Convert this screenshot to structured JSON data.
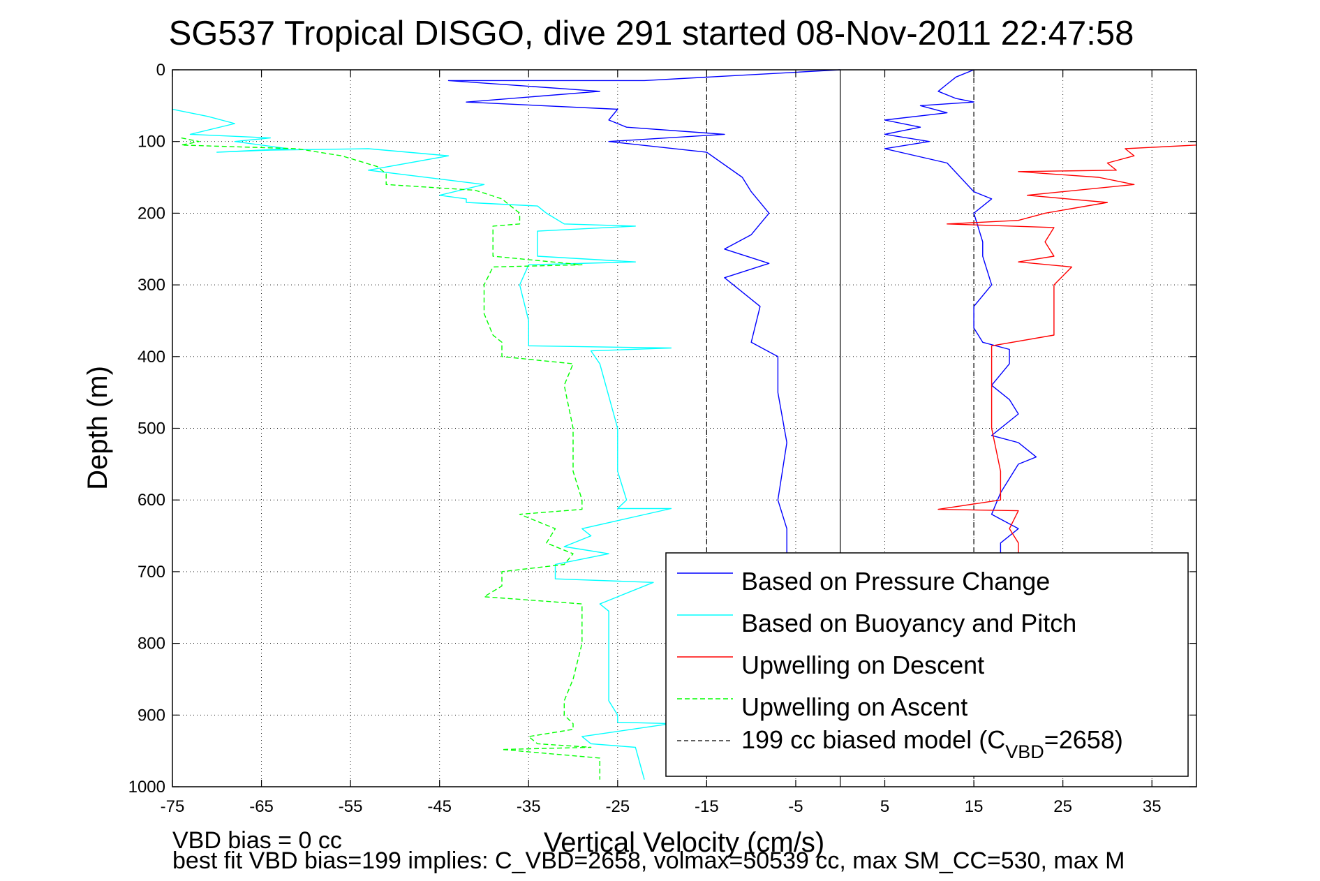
{
  "chart_data": {
    "type": "line",
    "title": "SG537 Tropical DISGO, dive 291 started 08-Nov-2011 22:47:58",
    "xlabel": "Vertical Velocity (cm/s)",
    "ylabel": "Depth (m)",
    "xlim": [
      -75,
      40
    ],
    "ylim": [
      1000,
      0
    ],
    "y_reversed": true,
    "grid": true,
    "legend_position": "bottom-right",
    "x_ticks": [
      "-75",
      "-65",
      "-55",
      "-45",
      "-35",
      "-25",
      "-15",
      "-5",
      "5",
      "15",
      "25",
      "35"
    ],
    "y_ticks": [
      "0",
      "100",
      "200",
      "300",
      "400",
      "500",
      "600",
      "700",
      "800",
      "900",
      "1000"
    ],
    "reference_lines": [
      {
        "name": "zero",
        "x": 0,
        "style": "solid",
        "color": "#000000"
      },
      {
        "name": "199 cc biased model (C_VBD=2658)",
        "x": -15,
        "style": "dashed",
        "color": "#000000"
      },
      {
        "name": "199 cc biased model (C_VBD=2658)",
        "x": 15,
        "style": "dashed",
        "color": "#000000"
      }
    ],
    "series": [
      {
        "name": "Based on Pressure Change (descent)",
        "color": "#0000ff",
        "dash": "solid",
        "x": [
          0,
          -22,
          -44,
          -27,
          -42,
          -25,
          -26,
          -24,
          -13,
          -26,
          -15,
          -11,
          -10,
          -8,
          -10,
          -13,
          -8,
          -13,
          -9,
          -10,
          -7,
          -7,
          -6,
          -7,
          -6,
          -6
        ],
        "y": [
          0,
          15,
          15,
          30,
          45,
          55,
          70,
          80,
          90,
          100,
          115,
          150,
          170,
          200,
          230,
          250,
          270,
          290,
          330,
          380,
          400,
          450,
          520,
          600,
          640,
          680
        ]
      },
      {
        "name": "Based on Pressure Change (ascent)",
        "color": "#0000ff",
        "dash": "solid",
        "x": [
          15,
          13,
          12,
          11,
          13,
          15,
          9,
          12,
          5,
          9,
          5,
          10,
          5,
          12,
          15,
          17,
          15,
          16,
          16,
          17,
          15,
          15,
          16,
          19,
          19,
          17,
          19,
          20,
          17,
          20,
          22,
          20,
          18,
          17,
          20,
          18,
          18
        ],
        "y": [
          0,
          10,
          20,
          30,
          40,
          45,
          50,
          60,
          70,
          80,
          90,
          100,
          110,
          130,
          170,
          180,
          200,
          240,
          260,
          300,
          330,
          360,
          380,
          390,
          410,
          440,
          460,
          480,
          510,
          520,
          540,
          550,
          590,
          620,
          640,
          660,
          680
        ]
      },
      {
        "name": "Based on Buoyancy and Pitch",
        "color": "#00ffff",
        "dash": "solid",
        "x": [
          -75,
          -71,
          -68,
          -73,
          -64,
          -68,
          -62,
          -70,
          -64,
          -53,
          -44,
          -53,
          -40,
          -45,
          -42,
          -42,
          -34,
          -33,
          -31,
          -23,
          -34,
          -34,
          -23,
          -35,
          -36,
          -35,
          -35,
          -19,
          -28,
          -27,
          -25,
          -25,
          -24,
          -25,
          -19,
          -29,
          -28,
          -31,
          -26,
          -32,
          -32,
          -21,
          -27,
          -26,
          -26,
          -26,
          -26,
          -25,
          -25,
          -19,
          -29,
          -28,
          -23,
          -22
        ],
        "y": [
          55,
          65,
          75,
          90,
          95,
          100,
          110,
          115,
          112,
          110,
          120,
          140,
          160,
          175,
          180,
          185,
          190,
          200,
          215,
          218,
          225,
          260,
          268,
          272,
          300,
          350,
          385,
          388,
          392,
          410,
          500,
          560,
          600,
          612,
          612,
          640,
          650,
          665,
          675,
          690,
          710,
          715,
          745,
          755,
          800,
          850,
          880,
          900,
          910,
          912,
          930,
          940,
          945,
          990
        ]
      },
      {
        "name": "Upwelling on Descent",
        "color": "#ff0000",
        "dash": "solid",
        "x": [
          40,
          32,
          33,
          30,
          31,
          20,
          29,
          33,
          21,
          30,
          23,
          20,
          12,
          24,
          23,
          24,
          20,
          26,
          24,
          24,
          24,
          17,
          17,
          17,
          17,
          18,
          18,
          11,
          20,
          19,
          20,
          20
        ],
        "y": [
          105,
          110,
          120,
          130,
          140,
          142,
          150,
          160,
          175,
          185,
          200,
          210,
          215,
          220,
          240,
          260,
          268,
          275,
          300,
          330,
          370,
          385,
          400,
          450,
          500,
          560,
          600,
          613,
          615,
          640,
          660,
          680
        ]
      },
      {
        "name": "Upwelling on Ascent",
        "color": "#00ff00",
        "dash": "dashed",
        "x": [
          -74,
          -72,
          -74,
          -61,
          -56,
          -52,
          -51,
          -51,
          -41,
          -40,
          -38,
          -36,
          -36,
          -39,
          -39,
          -29,
          -39,
          -40,
          -40,
          -39,
          -38,
          -38,
          -38,
          -38,
          -30,
          -31,
          -30,
          -30,
          -29,
          -29,
          -29,
          -36,
          -32,
          -33,
          -30,
          -31,
          -38,
          -38,
          -40,
          -29,
          -29,
          -29,
          -30,
          -31,
          -31,
          -30,
          -30,
          -35,
          -34,
          -28,
          -38,
          -27,
          -27
        ],
        "y": [
          95,
          100,
          105,
          110,
          120,
          135,
          145,
          160,
          168,
          172,
          180,
          200,
          215,
          218,
          260,
          272,
          275,
          300,
          340,
          370,
          380,
          384,
          390,
          400,
          410,
          440,
          500,
          560,
          600,
          612,
          613,
          620,
          640,
          660,
          675,
          690,
          700,
          720,
          735,
          745,
          760,
          800,
          850,
          880,
          900,
          912,
          920,
          930,
          940,
          945,
          948,
          960,
          990
        ]
      }
    ]
  },
  "legend": {
    "entries": [
      {
        "label": "Based on Pressure Change",
        "color": "#0000ff",
        "dash": "solid"
      },
      {
        "label": "Based on Buoyancy and Pitch",
        "color": "#00ffff",
        "dash": "solid"
      },
      {
        "label": "Upwelling on Descent",
        "color": "#ff0000",
        "dash": "solid"
      },
      {
        "label": "Upwelling on Ascent",
        "color": "#00ff00",
        "dash": "dashed"
      },
      {
        "label_prefix": "199 cc biased model (C",
        "label_subscript": "VBD",
        "label_suffix": "=2658)",
        "color": "#000000",
        "dash": "dashed"
      }
    ]
  },
  "footer": {
    "line1": "VBD bias = 0 cc",
    "line2": "best fit VBD bias=199 implies: C_VBD=2658, volmax=50539 cc, max SM_CC=530, max M"
  }
}
